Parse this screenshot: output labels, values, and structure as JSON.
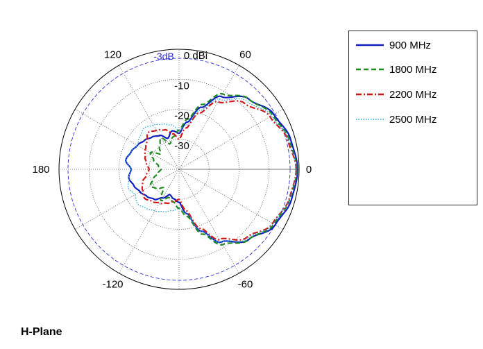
{
  "chart_data": {
    "type": "polar",
    "xlabel": "",
    "ylabel": "",
    "angle_ticks": [
      "0",
      "60",
      "120",
      "180",
      "-120",
      "-60"
    ],
    "radial_ticks": [
      "0 dBi",
      "-10",
      "-20",
      "-30"
    ],
    "radial_range": [
      -40,
      0
    ],
    "reference_ring": {
      "label": "-3dB",
      "value": -3,
      "color": "#2a2ad8"
    },
    "grid": true,
    "legend_position": "right",
    "series": [
      {
        "name": "900 MHz",
        "color": "#1020c0",
        "style": "solid",
        "angles": [
          0,
          15,
          30,
          45,
          60,
          70,
          80,
          90,
          100,
          110,
          120,
          130,
          140,
          150,
          160,
          170,
          180,
          -170,
          -160,
          -150,
          -140,
          -130,
          -120,
          -110,
          -100,
          -90,
          -80,
          -70,
          -60,
          -45,
          -30,
          -15
        ],
        "values": [
          -0.5,
          -1.5,
          -3.5,
          -7,
          -12,
          -18,
          -24,
          -28,
          -27,
          -29,
          -27,
          -26,
          -25,
          -24,
          -23,
          -22,
          -24,
          -23,
          -24,
          -25,
          -26,
          -27,
          -29,
          -31,
          -30,
          -29,
          -25,
          -18,
          -12,
          -7,
          -3,
          -1.2
        ]
      },
      {
        "name": "1800 MHz",
        "color": "#1f8a1f",
        "style": "dashed",
        "angles": [
          0,
          15,
          30,
          45,
          60,
          70,
          80,
          90,
          100,
          110,
          120,
          130,
          140,
          150,
          160,
          170,
          180,
          -170,
          -160,
          -150,
          -140,
          -130,
          -120,
          -110,
          -100,
          -90,
          -80,
          -70,
          -60,
          -45,
          -30,
          -15
        ],
        "values": [
          -0.8,
          -2,
          -4,
          -7,
          -11,
          -17,
          -23,
          -27,
          -29,
          -31,
          -28,
          -30,
          -32,
          -29,
          -31,
          -33,
          -34,
          -33,
          -31,
          -29,
          -30,
          -32,
          -28,
          -30,
          -29,
          -27,
          -24,
          -17,
          -11,
          -7,
          -3.5,
          -1.8
        ]
      },
      {
        "name": "2200 MHz",
        "color": "#d01818",
        "style": "dashdot",
        "angles": [
          0,
          15,
          30,
          45,
          60,
          70,
          80,
          90,
          100,
          110,
          120,
          130,
          140,
          150,
          160,
          170,
          180,
          -170,
          -160,
          -150,
          -140,
          -130,
          -120,
          -110,
          -100,
          -90,
          -80,
          -70,
          -60,
          -45,
          -30,
          -15
        ],
        "values": [
          -1,
          -2.5,
          -5,
          -9,
          -14,
          -20,
          -26,
          -30,
          -28,
          -26,
          -25,
          -24,
          -26,
          -27,
          -28,
          -29,
          -30,
          -29,
          -27,
          -26,
          -25,
          -26,
          -27,
          -28,
          -29,
          -30,
          -26,
          -19,
          -13,
          -8,
          -4,
          -2
        ]
      },
      {
        "name": "2500 MHz",
        "color": "#22aadd",
        "style": "dotted",
        "angles": [
          0,
          15,
          30,
          45,
          60,
          70,
          80,
          90,
          100,
          110,
          120,
          130,
          140,
          150,
          160,
          170,
          180,
          -170,
          -160,
          -150,
          -140,
          -130,
          -120,
          -110,
          -100,
          -90,
          -80,
          -70,
          -60,
          -45,
          -30,
          -15
        ],
        "values": [
          -1,
          -2.2,
          -4.5,
          -8,
          -13,
          -19,
          -25,
          -27,
          -25,
          -24,
          -23,
          -22,
          -23,
          -24,
          -23,
          -22,
          -24,
          -23,
          -22,
          -23,
          -22,
          -23,
          -24,
          -25,
          -26,
          -27,
          -25,
          -18,
          -12,
          -7.5,
          -3.8,
          -1.9
        ]
      }
    ]
  },
  "plane_label": "H-Plane"
}
